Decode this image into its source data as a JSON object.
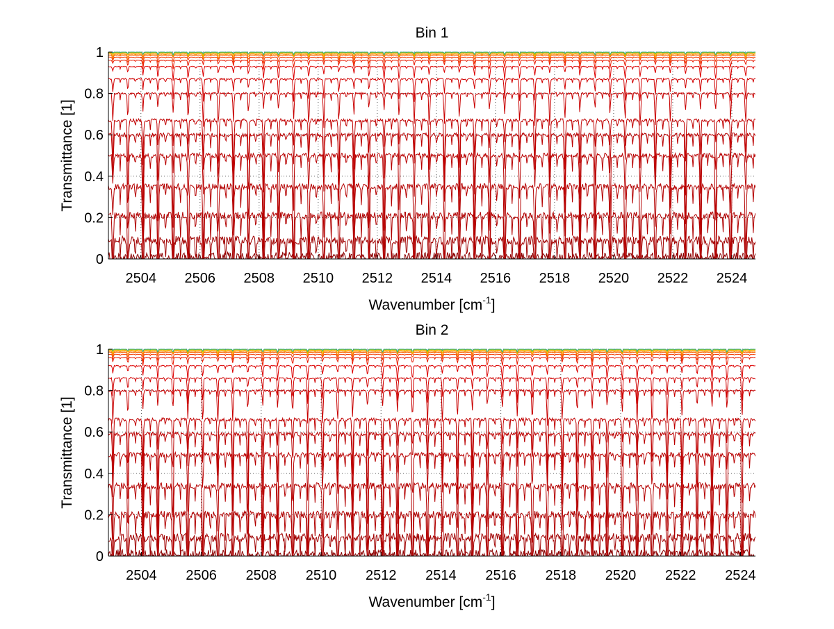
{
  "chart_data": [
    {
      "type": "line",
      "title": "Bin 1",
      "xlabel": "Wavenumber [cm",
      "xlabel_sup": "-1",
      "xlabel_end": "]",
      "ylabel": "Transmittance [1]",
      "xlim": [
        2502.9,
        2524.8
      ],
      "ylim": [
        0,
        1
      ],
      "xticks": [
        2504,
        2506,
        2508,
        2510,
        2512,
        2514,
        2516,
        2518,
        2520,
        2522,
        2524
      ],
      "xtick_labels": [
        "2504",
        "2506",
        "2508",
        "2510",
        "2512",
        "2514",
        "2516",
        "2518",
        "2520",
        "2522",
        "2524"
      ],
      "yticks": [
        0,
        0.2,
        0.4,
        0.6,
        0.8,
        1
      ],
      "ytick_labels": [
        "0",
        "0.2",
        "0.4",
        "0.6",
        "0.8",
        "1"
      ],
      "grid": true,
      "line_spacing": 0.51,
      "series_baselines": [
        0.01,
        0.09,
        0.21,
        0.35,
        0.5,
        0.6,
        0.67,
        0.8,
        0.87,
        0.93,
        0.96,
        0.975,
        0.985,
        0.99,
        0.995,
        0.998,
        1.0
      ],
      "series_colors": [
        "#8b0000",
        "#a00000",
        "#b00000",
        "#b40000",
        "#b80000",
        "#bb0000",
        "#c00000",
        "#c80000",
        "#d00000",
        "#dc0000",
        "#e81800",
        "#f23a00",
        "#f76000",
        "#fb8800",
        "#f5b000",
        "#b8c800",
        "#33aa88"
      ]
    },
    {
      "type": "line",
      "title": "Bin 2",
      "xlabel": "Wavenumber [cm",
      "xlabel_sup": "-1",
      "xlabel_end": "]",
      "ylabel": "Transmittance [1]",
      "xlim": [
        2502.9,
        2524.5
      ],
      "ylim": [
        0,
        1
      ],
      "xticks": [
        2504,
        2506,
        2508,
        2510,
        2512,
        2514,
        2516,
        2518,
        2520,
        2522,
        2524
      ],
      "xtick_labels": [
        "2504",
        "2506",
        "2508",
        "2510",
        "2512",
        "2514",
        "2516",
        "2518",
        "2520",
        "2522",
        "2524"
      ],
      "yticks": [
        0,
        0.2,
        0.4,
        0.6,
        0.8,
        1
      ],
      "ytick_labels": [
        "0",
        "0.2",
        "0.4",
        "0.6",
        "0.8",
        "1"
      ],
      "grid": true,
      "line_spacing": 0.5,
      "series_baselines": [
        0.01,
        0.09,
        0.2,
        0.34,
        0.49,
        0.59,
        0.66,
        0.8,
        0.86,
        0.92,
        0.96,
        0.975,
        0.985,
        0.99,
        0.995,
        0.998,
        1.0
      ],
      "series_colors": [
        "#8b0000",
        "#a00000",
        "#b00000",
        "#b40000",
        "#b80000",
        "#bb0000",
        "#c00000",
        "#c80000",
        "#d00000",
        "#dc0000",
        "#e81800",
        "#f23a00",
        "#f76000",
        "#fb8800",
        "#f5b000",
        "#b8c800",
        "#33aa88"
      ]
    }
  ]
}
